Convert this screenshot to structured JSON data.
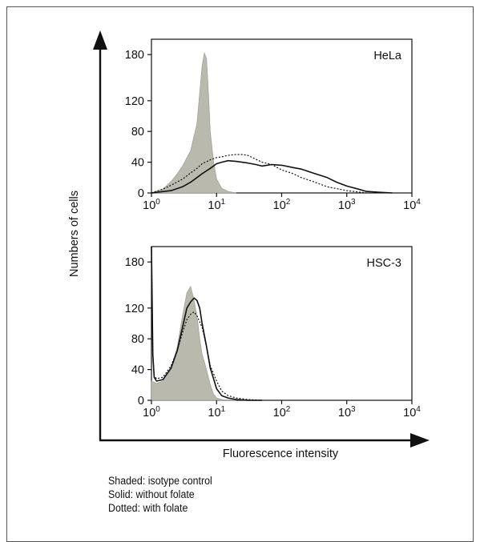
{
  "figure": {
    "y_axis_title": "Numbers of cells",
    "x_axis_title": "Fluorescence intensity",
    "legend": [
      "Shaded: isotype control",
      "Solid: without folate",
      "Dotted: with folate"
    ]
  },
  "chart_data": [
    {
      "type": "area",
      "title": "HeLa",
      "xlabel": "Fluorescence intensity",
      "ylabel": "Numbers of cells",
      "xscale": "log",
      "xlim": [
        1,
        10000
      ],
      "ylim": [
        0,
        200
      ],
      "x_ticks": [
        "10^0",
        "10^1",
        "10^2",
        "10^3",
        "10^4"
      ],
      "y_ticks": [
        0,
        40,
        80,
        120,
        180
      ],
      "grid": false,
      "series": [
        {
          "name": "isotype control",
          "style": "shaded",
          "x": [
            1,
            1.5,
            2,
            2.5,
            3,
            4,
            5,
            5.5,
            6,
            6.5,
            7,
            7.5,
            8,
            9,
            10,
            12,
            15,
            20
          ],
          "y": [
            0,
            5,
            15,
            25,
            35,
            55,
            90,
            130,
            165,
            182,
            175,
            130,
            80,
            40,
            18,
            6,
            2,
            0
          ]
        },
        {
          "name": "without folate",
          "style": "solid",
          "x": [
            1,
            2,
            3,
            4,
            5,
            6,
            8,
            10,
            12,
            15,
            20,
            30,
            40,
            50,
            70,
            100,
            150,
            200,
            300,
            500,
            700,
            1000,
            1500,
            2000,
            3000,
            5000
          ],
          "y": [
            0,
            3,
            8,
            14,
            20,
            25,
            32,
            38,
            40,
            42,
            41,
            39,
            37,
            35,
            37,
            36,
            33,
            31,
            26,
            20,
            14,
            9,
            5,
            2,
            1,
            0
          ]
        },
        {
          "name": "with folate",
          "style": "dotted",
          "x": [
            1,
            1.5,
            2,
            3,
            4,
            5,
            6,
            8,
            10,
            12,
            15,
            20,
            25,
            30,
            40,
            50,
            70,
            100,
            150,
            200,
            300,
            500,
            1000,
            2000
          ],
          "y": [
            0,
            5,
            10,
            18,
            26,
            32,
            38,
            43,
            46,
            47,
            49,
            50,
            50,
            49,
            44,
            40,
            37,
            30,
            25,
            20,
            15,
            8,
            3,
            0
          ]
        }
      ]
    },
    {
      "type": "area",
      "title": "HSC-3",
      "xlabel": "Fluorescence intensity",
      "ylabel": "Numbers of cells",
      "xscale": "log",
      "xlim": [
        1,
        10000
      ],
      "ylim": [
        0,
        200
      ],
      "x_ticks": [
        "10^0",
        "10^1",
        "10^2",
        "10^3",
        "10^4"
      ],
      "y_ticks": [
        0,
        40,
        80,
        120,
        180
      ],
      "grid": false,
      "series": [
        {
          "name": "isotype control",
          "style": "shaded",
          "x": [
            1,
            1.2,
            1.5,
            2,
            2.5,
            3,
            3.5,
            4,
            4.5,
            5,
            5.5,
            6,
            7,
            8,
            9,
            10,
            12,
            15,
            20
          ],
          "y": [
            25,
            22,
            25,
            40,
            70,
            110,
            140,
            148,
            130,
            110,
            80,
            60,
            40,
            20,
            8,
            3,
            1,
            0,
            0
          ]
        },
        {
          "name": "without folate",
          "style": "solid",
          "x": [
            1,
            1.05,
            1.1,
            1.2,
            1.5,
            2,
            2.5,
            3,
            3.5,
            4,
            4.5,
            5,
            5.5,
            6,
            7,
            8,
            10,
            12,
            15,
            20,
            30,
            50
          ],
          "y": [
            200,
            60,
            30,
            25,
            27,
            42,
            65,
            95,
            120,
            128,
            133,
            130,
            120,
            100,
            70,
            42,
            15,
            6,
            3,
            1,
            0,
            0
          ]
        },
        {
          "name": "with folate",
          "style": "dotted",
          "x": [
            1,
            1.05,
            1.1,
            1.2,
            1.5,
            2,
            2.5,
            3,
            3.5,
            4,
            4.5,
            5,
            6,
            7,
            8,
            10,
            12,
            15,
            20,
            30,
            50
          ],
          "y": [
            200,
            60,
            32,
            28,
            30,
            45,
            65,
            88,
            105,
            112,
            115,
            110,
            95,
            70,
            45,
            25,
            12,
            6,
            3,
            1,
            0
          ]
        }
      ]
    }
  ]
}
